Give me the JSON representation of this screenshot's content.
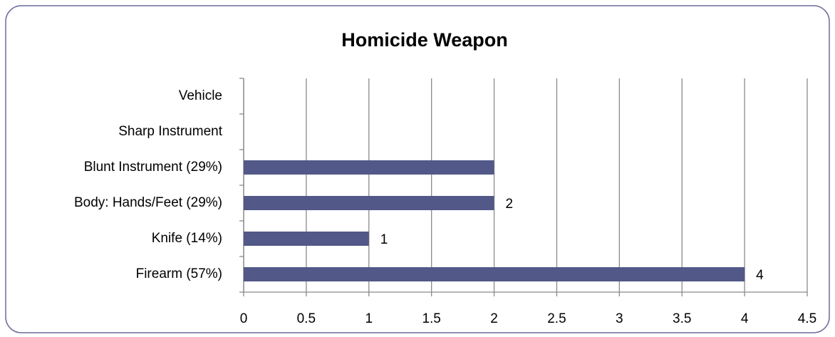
{
  "chart_data": {
    "type": "bar",
    "orientation": "horizontal",
    "title": "Homicide Weapon",
    "categories": [
      "Vehicle",
      "Sharp Instrument",
      "Blunt Instrument (29%)",
      "Body: Hands/Feet (29%)",
      "Knife (14%)",
      "Firearm (57%)"
    ],
    "values": [
      0,
      0,
      2,
      2,
      1,
      4
    ],
    "value_labels": [
      null,
      null,
      null,
      "2",
      "1",
      "4"
    ],
    "color": "#525888",
    "xlim": [
      0,
      4.5
    ],
    "xticks": [
      0,
      0.5,
      1,
      1.5,
      2,
      2.5,
      3,
      3.5,
      4,
      4.5
    ],
    "grid": true
  }
}
